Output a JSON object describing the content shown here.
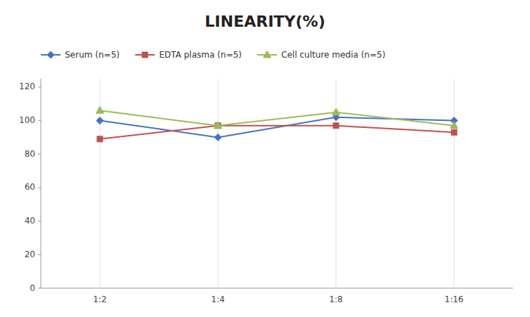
{
  "chart_data": {
    "type": "line",
    "title": "LINEARITY(%)",
    "categories": [
      "1:2",
      "1:4",
      "1:8",
      "1:16"
    ],
    "series": [
      {
        "name": "Serum (n=5)",
        "color": "#4472C4",
        "marker": "diamond",
        "values": [
          100,
          90,
          102,
          100
        ]
      },
      {
        "name": "EDTA plasma (n=5)",
        "color": "#C0504D",
        "marker": "square",
        "values": [
          89,
          97,
          97,
          93
        ]
      },
      {
        "name": "Cell culture media (n=5)",
        "color": "#9BBB59",
        "marker": "triangle",
        "values": [
          106,
          97,
          105,
          97
        ]
      }
    ],
    "ylim": [
      0,
      125
    ],
    "yticks": [
      0,
      20,
      40,
      60,
      80,
      100,
      120
    ],
    "grid": "x",
    "legend": "top"
  }
}
